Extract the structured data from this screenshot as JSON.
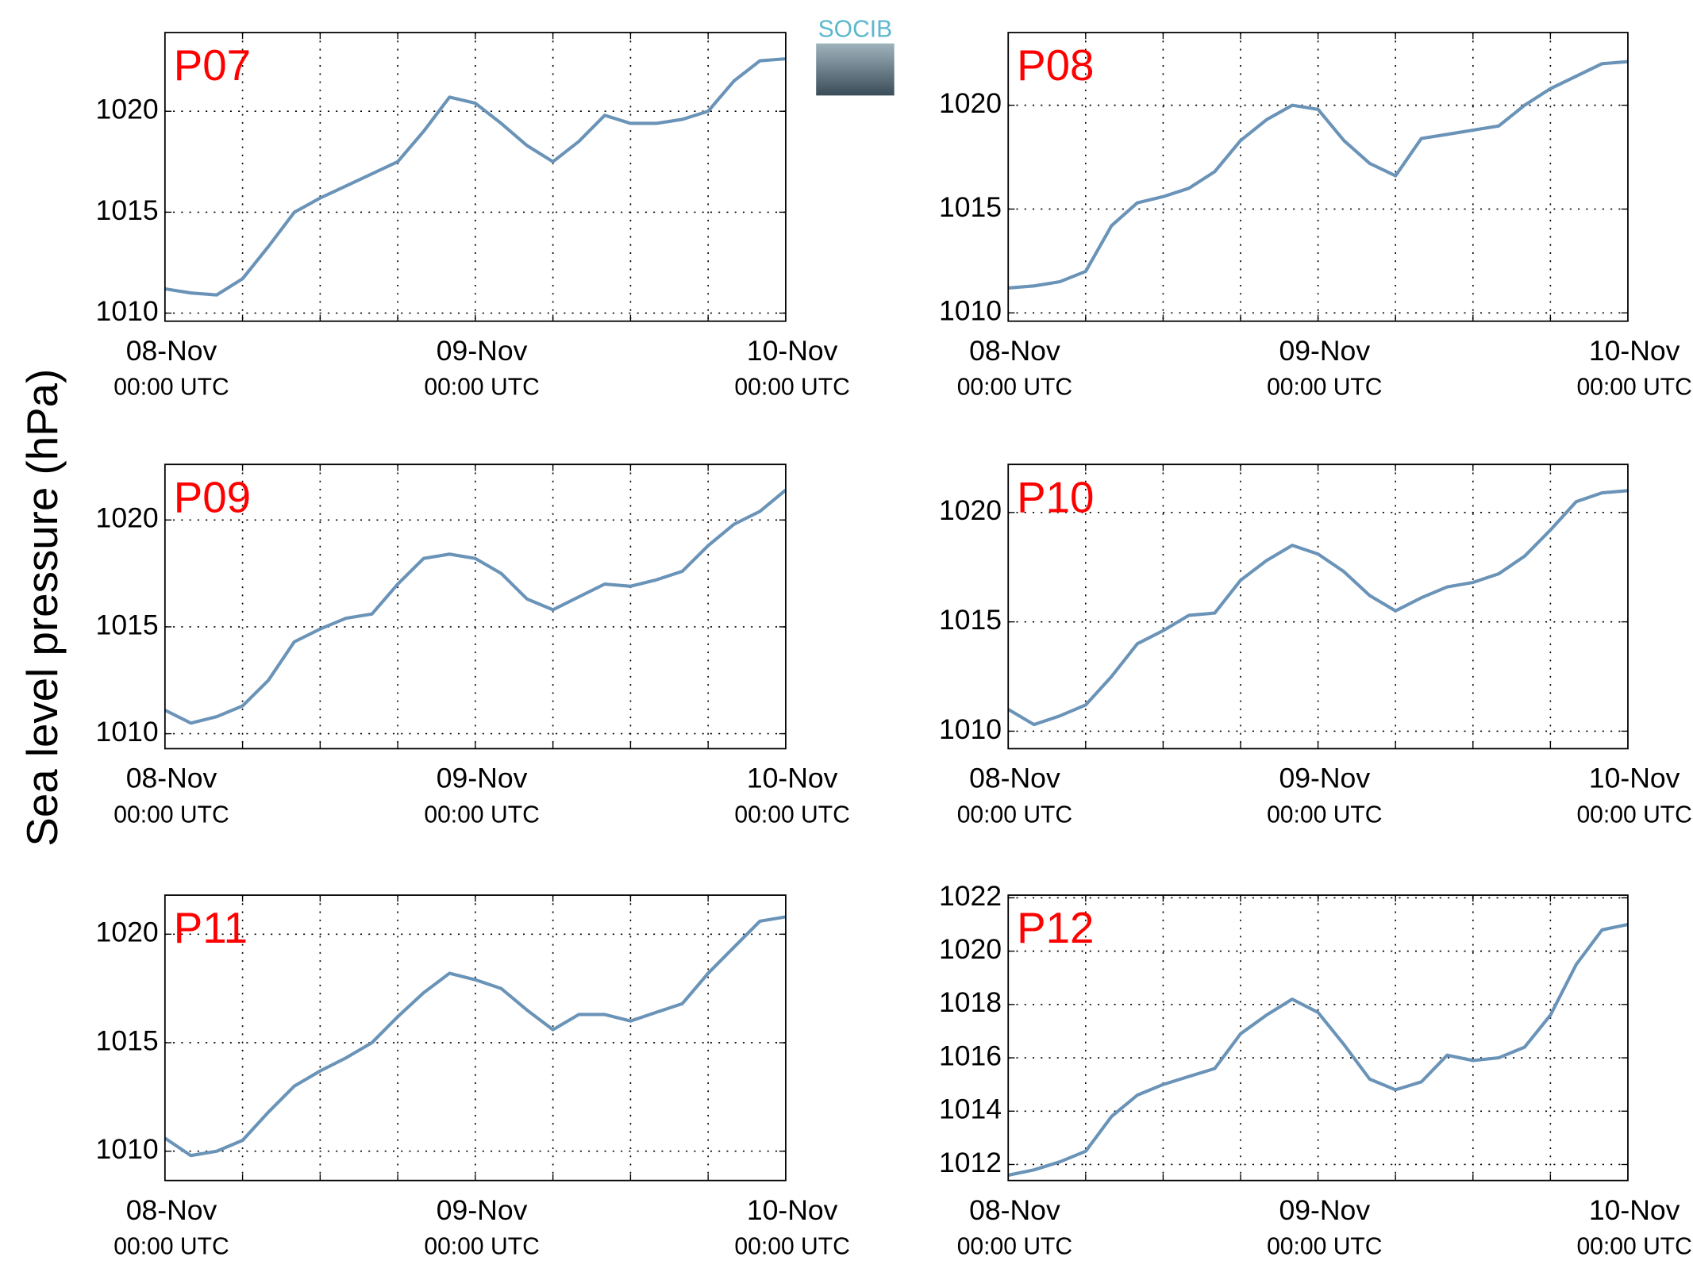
{
  "ylabel": "Sea level pressure (hPa)",
  "logo": "SOCIB",
  "chart_data": [
    {
      "type": "line",
      "title": "P07",
      "color": "#6a93b8",
      "x": [
        0,
        2,
        4,
        6,
        8,
        10,
        12,
        14,
        16,
        18,
        20,
        22,
        24,
        26,
        28,
        30,
        32,
        34,
        36,
        38,
        40,
        42,
        44,
        46,
        48
      ],
      "values": [
        1011.2,
        1011.0,
        1010.9,
        1011.7,
        1013.3,
        1015.0,
        1015.7,
        1016.3,
        1016.9,
        1017.5,
        1019.0,
        1020.7,
        1020.4,
        1019.4,
        1018.3,
        1017.5,
        1018.5,
        1019.8,
        1019.4,
        1019.4,
        1019.6,
        1020.0,
        1021.5,
        1022.5,
        1022.6
      ],
      "xlim": [
        0,
        48
      ],
      "xticks": [
        {
          "value": 0,
          "label": [
            "08-Nov",
            "00:00 UTC"
          ]
        },
        {
          "value": 24,
          "label": [
            "09-Nov",
            "00:00 UTC"
          ]
        },
        {
          "value": 48,
          "label": [
            "10-Nov",
            "00:00 UTC"
          ]
        }
      ],
      "xgrid": [
        6,
        12,
        18,
        24,
        30,
        36,
        42
      ],
      "ylim": [
        1009.6,
        1023.9
      ],
      "yticks": [
        1010,
        1015,
        1020
      ],
      "grid": true
    },
    {
      "type": "line",
      "title": "P08",
      "color": "#6a93b8",
      "x": [
        0,
        2,
        4,
        6,
        8,
        10,
        12,
        14,
        16,
        18,
        20,
        22,
        24,
        26,
        28,
        30,
        32,
        34,
        36,
        38,
        40,
        42,
        44,
        46,
        48
      ],
      "values": [
        1011.2,
        1011.3,
        1011.5,
        1012.0,
        1014.2,
        1015.3,
        1015.6,
        1016.0,
        1016.8,
        1018.3,
        1019.3,
        1020.0,
        1019.8,
        1018.3,
        1017.2,
        1016.6,
        1018.4,
        1018.6,
        1018.8,
        1019.0,
        1020.0,
        1020.8,
        1021.4,
        1022.0,
        1022.1
      ],
      "xlim": [
        0,
        48
      ],
      "xticks": [
        {
          "value": 0,
          "label": [
            "08-Nov",
            "00:00 UTC"
          ]
        },
        {
          "value": 24,
          "label": [
            "09-Nov",
            "00:00 UTC"
          ]
        },
        {
          "value": 48,
          "label": [
            "10-Nov",
            "00:00 UTC"
          ]
        }
      ],
      "xgrid": [
        6,
        12,
        18,
        24,
        30,
        36,
        42
      ],
      "ylim": [
        1009.6,
        1023.5
      ],
      "yticks": [
        1010,
        1015,
        1020
      ],
      "grid": true
    },
    {
      "type": "line",
      "title": "P09",
      "color": "#6a93b8",
      "x": [
        0,
        2,
        4,
        6,
        8,
        10,
        12,
        14,
        16,
        18,
        20,
        22,
        24,
        26,
        28,
        30,
        32,
        34,
        36,
        38,
        40,
        42,
        44,
        46,
        48
      ],
      "values": [
        1011.1,
        1010.5,
        1010.8,
        1011.3,
        1012.5,
        1014.3,
        1014.9,
        1015.4,
        1015.6,
        1017.0,
        1018.2,
        1018.4,
        1018.2,
        1017.5,
        1016.3,
        1015.8,
        1016.4,
        1017.0,
        1016.9,
        1017.2,
        1017.6,
        1018.8,
        1019.8,
        1020.4,
        1021.4
      ],
      "xlim": [
        0,
        48
      ],
      "xticks": [
        {
          "value": 0,
          "label": [
            "08-Nov",
            "00:00 UTC"
          ]
        },
        {
          "value": 24,
          "label": [
            "09-Nov",
            "00:00 UTC"
          ]
        },
        {
          "value": 48,
          "label": [
            "10-Nov",
            "00:00 UTC"
          ]
        }
      ],
      "xgrid": [
        6,
        12,
        18,
        24,
        30,
        36,
        42
      ],
      "ylim": [
        1009.3,
        1022.6
      ],
      "yticks": [
        1010,
        1015,
        1020
      ],
      "grid": true
    },
    {
      "type": "line",
      "title": "P10",
      "color": "#6a93b8",
      "x": [
        0,
        2,
        4,
        6,
        8,
        10,
        12,
        14,
        16,
        18,
        20,
        22,
        24,
        26,
        28,
        30,
        32,
        34,
        36,
        38,
        40,
        42,
        44,
        46,
        48
      ],
      "values": [
        1011.0,
        1010.3,
        1010.7,
        1011.2,
        1012.5,
        1014.0,
        1014.6,
        1015.3,
        1015.4,
        1016.9,
        1017.8,
        1018.5,
        1018.1,
        1017.3,
        1016.2,
        1015.5,
        1016.1,
        1016.6,
        1016.8,
        1017.2,
        1018.0,
        1019.2,
        1020.5,
        1020.9,
        1021.0
      ],
      "xlim": [
        0,
        48
      ],
      "xticks": [
        {
          "value": 0,
          "label": [
            "08-Nov",
            "00:00 UTC"
          ]
        },
        {
          "value": 24,
          "label": [
            "09-Nov",
            "00:00 UTC"
          ]
        },
        {
          "value": 48,
          "label": [
            "10-Nov",
            "00:00 UTC"
          ]
        }
      ],
      "xgrid": [
        6,
        12,
        18,
        24,
        30,
        36,
        42
      ],
      "ylim": [
        1009.2,
        1022.2
      ],
      "yticks": [
        1010,
        1015,
        1020
      ],
      "grid": true
    },
    {
      "type": "line",
      "title": "P11",
      "color": "#6a93b8",
      "x": [
        0,
        2,
        4,
        6,
        8,
        10,
        12,
        14,
        16,
        18,
        20,
        22,
        24,
        26,
        28,
        30,
        32,
        34,
        36,
        38,
        40,
        42,
        44,
        46,
        48
      ],
      "values": [
        1010.6,
        1009.8,
        1010.0,
        1010.5,
        1011.8,
        1013.0,
        1013.7,
        1014.3,
        1015.0,
        1016.2,
        1017.3,
        1018.2,
        1017.9,
        1017.5,
        1016.5,
        1015.6,
        1016.3,
        1016.3,
        1016.0,
        1016.4,
        1016.8,
        1018.2,
        1019.4,
        1020.6,
        1020.8
      ],
      "xlim": [
        0,
        48
      ],
      "xticks": [
        {
          "value": 0,
          "label": [
            "08-Nov",
            "00:00 UTC"
          ]
        },
        {
          "value": 24,
          "label": [
            "09-Nov",
            "00:00 UTC"
          ]
        },
        {
          "value": 48,
          "label": [
            "10-Nov",
            "00:00 UTC"
          ]
        }
      ],
      "xgrid": [
        6,
        12,
        18,
        24,
        30,
        36,
        42
      ],
      "ylim": [
        1008.65,
        1021.8
      ],
      "yticks": [
        1010,
        1015,
        1020
      ],
      "grid": true
    },
    {
      "type": "line",
      "title": "P12",
      "color": "#6a93b8",
      "x": [
        0,
        2,
        4,
        6,
        8,
        10,
        12,
        14,
        16,
        18,
        20,
        22,
        24,
        26,
        28,
        30,
        32,
        34,
        36,
        38,
        40,
        42,
        44,
        46,
        48
      ],
      "values": [
        1011.6,
        1011.8,
        1012.1,
        1012.5,
        1013.8,
        1014.6,
        1015.0,
        1015.3,
        1015.6,
        1016.9,
        1017.6,
        1018.2,
        1017.7,
        1016.5,
        1015.2,
        1014.8,
        1015.1,
        1016.1,
        1015.9,
        1016.0,
        1016.4,
        1017.6,
        1019.5,
        1020.8,
        1021.0
      ],
      "xlim": [
        0,
        48
      ],
      "xticks": [
        {
          "value": 0,
          "label": [
            "08-Nov",
            "00:00 UTC"
          ]
        },
        {
          "value": 24,
          "label": [
            "09-Nov",
            "00:00 UTC"
          ]
        },
        {
          "value": 48,
          "label": [
            "10-Nov",
            "00:00 UTC"
          ]
        }
      ],
      "xgrid": [
        6,
        12,
        18,
        24,
        30,
        36,
        42
      ],
      "ylim": [
        1011.4,
        1022.1
      ],
      "yticks": [
        1012,
        1014,
        1016,
        1018,
        1020,
        1022
      ],
      "grid": true
    }
  ]
}
